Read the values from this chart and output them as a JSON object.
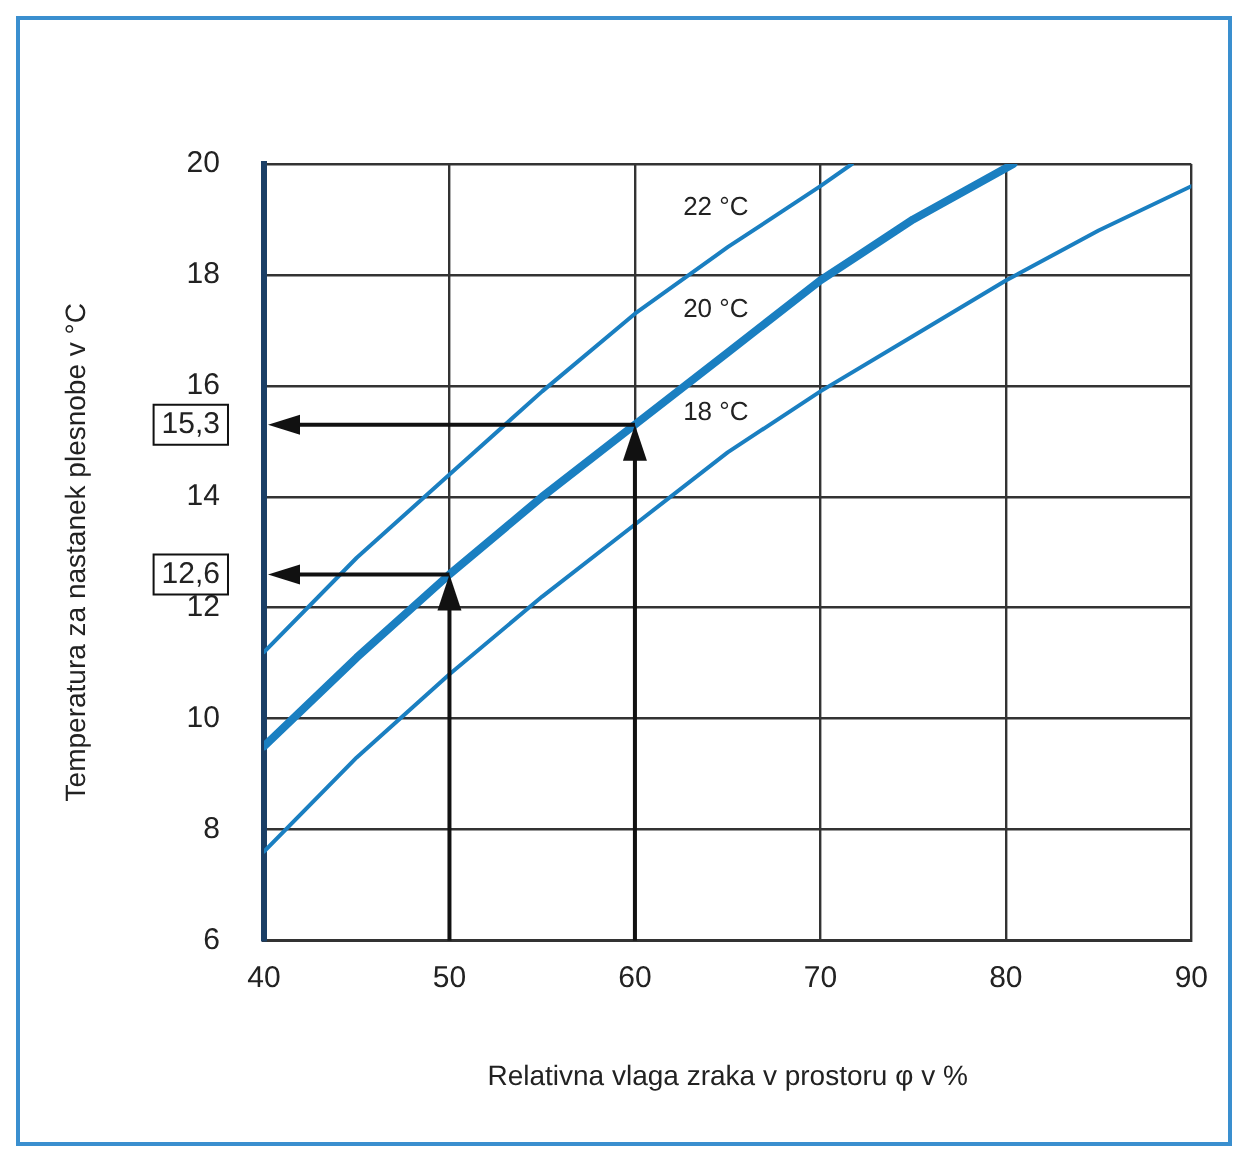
{
  "chart_data": {
    "type": "line",
    "xlabel": "Relativna vlaga zraka v prostoru φ v %",
    "ylabel": "Temperatura za nastanek plesnobe v °C",
    "xlim": [
      40,
      90
    ],
    "xticks": [
      40,
      50,
      60,
      70,
      80,
      90
    ],
    "ylim": [
      6,
      20
    ],
    "yticks": [
      6,
      8,
      10,
      12,
      {
        "value": 12.6,
        "label": "12,6"
      },
      14,
      {
        "value": 15.3,
        "label": "15,3"
      },
      16,
      18,
      20
    ],
    "grid": true,
    "legend": false,
    "marker": "none",
    "line_style": "solid",
    "series": [
      {
        "name": "22 °C",
        "color": "#1a7fc1",
        "x": [
          40,
          45,
          50,
          55,
          60,
          65,
          70,
          71.7
        ],
        "values": [
          11.2,
          12.9,
          14.4,
          15.9,
          17.3,
          18.5,
          19.6,
          20
        ]
      },
      {
        "name": "20 °C",
        "color": "#1a7fc1",
        "x": [
          40,
          45,
          50,
          55,
          60,
          65,
          70,
          75,
          80.4
        ],
        "values": [
          9.5,
          11.1,
          12.6,
          14.0,
          15.3,
          16.6,
          17.9,
          19.0,
          20
        ]
      },
      {
        "name": "18 °C",
        "color": "#1a7fc1",
        "x": [
          40,
          45,
          50,
          55,
          60,
          65,
          70,
          75,
          80,
          85,
          90
        ],
        "values": [
          7.6,
          9.3,
          10.8,
          12.2,
          13.5,
          14.8,
          15.9,
          16.9,
          17.9,
          18.8,
          19.6
        ]
      }
    ]
  }
}
